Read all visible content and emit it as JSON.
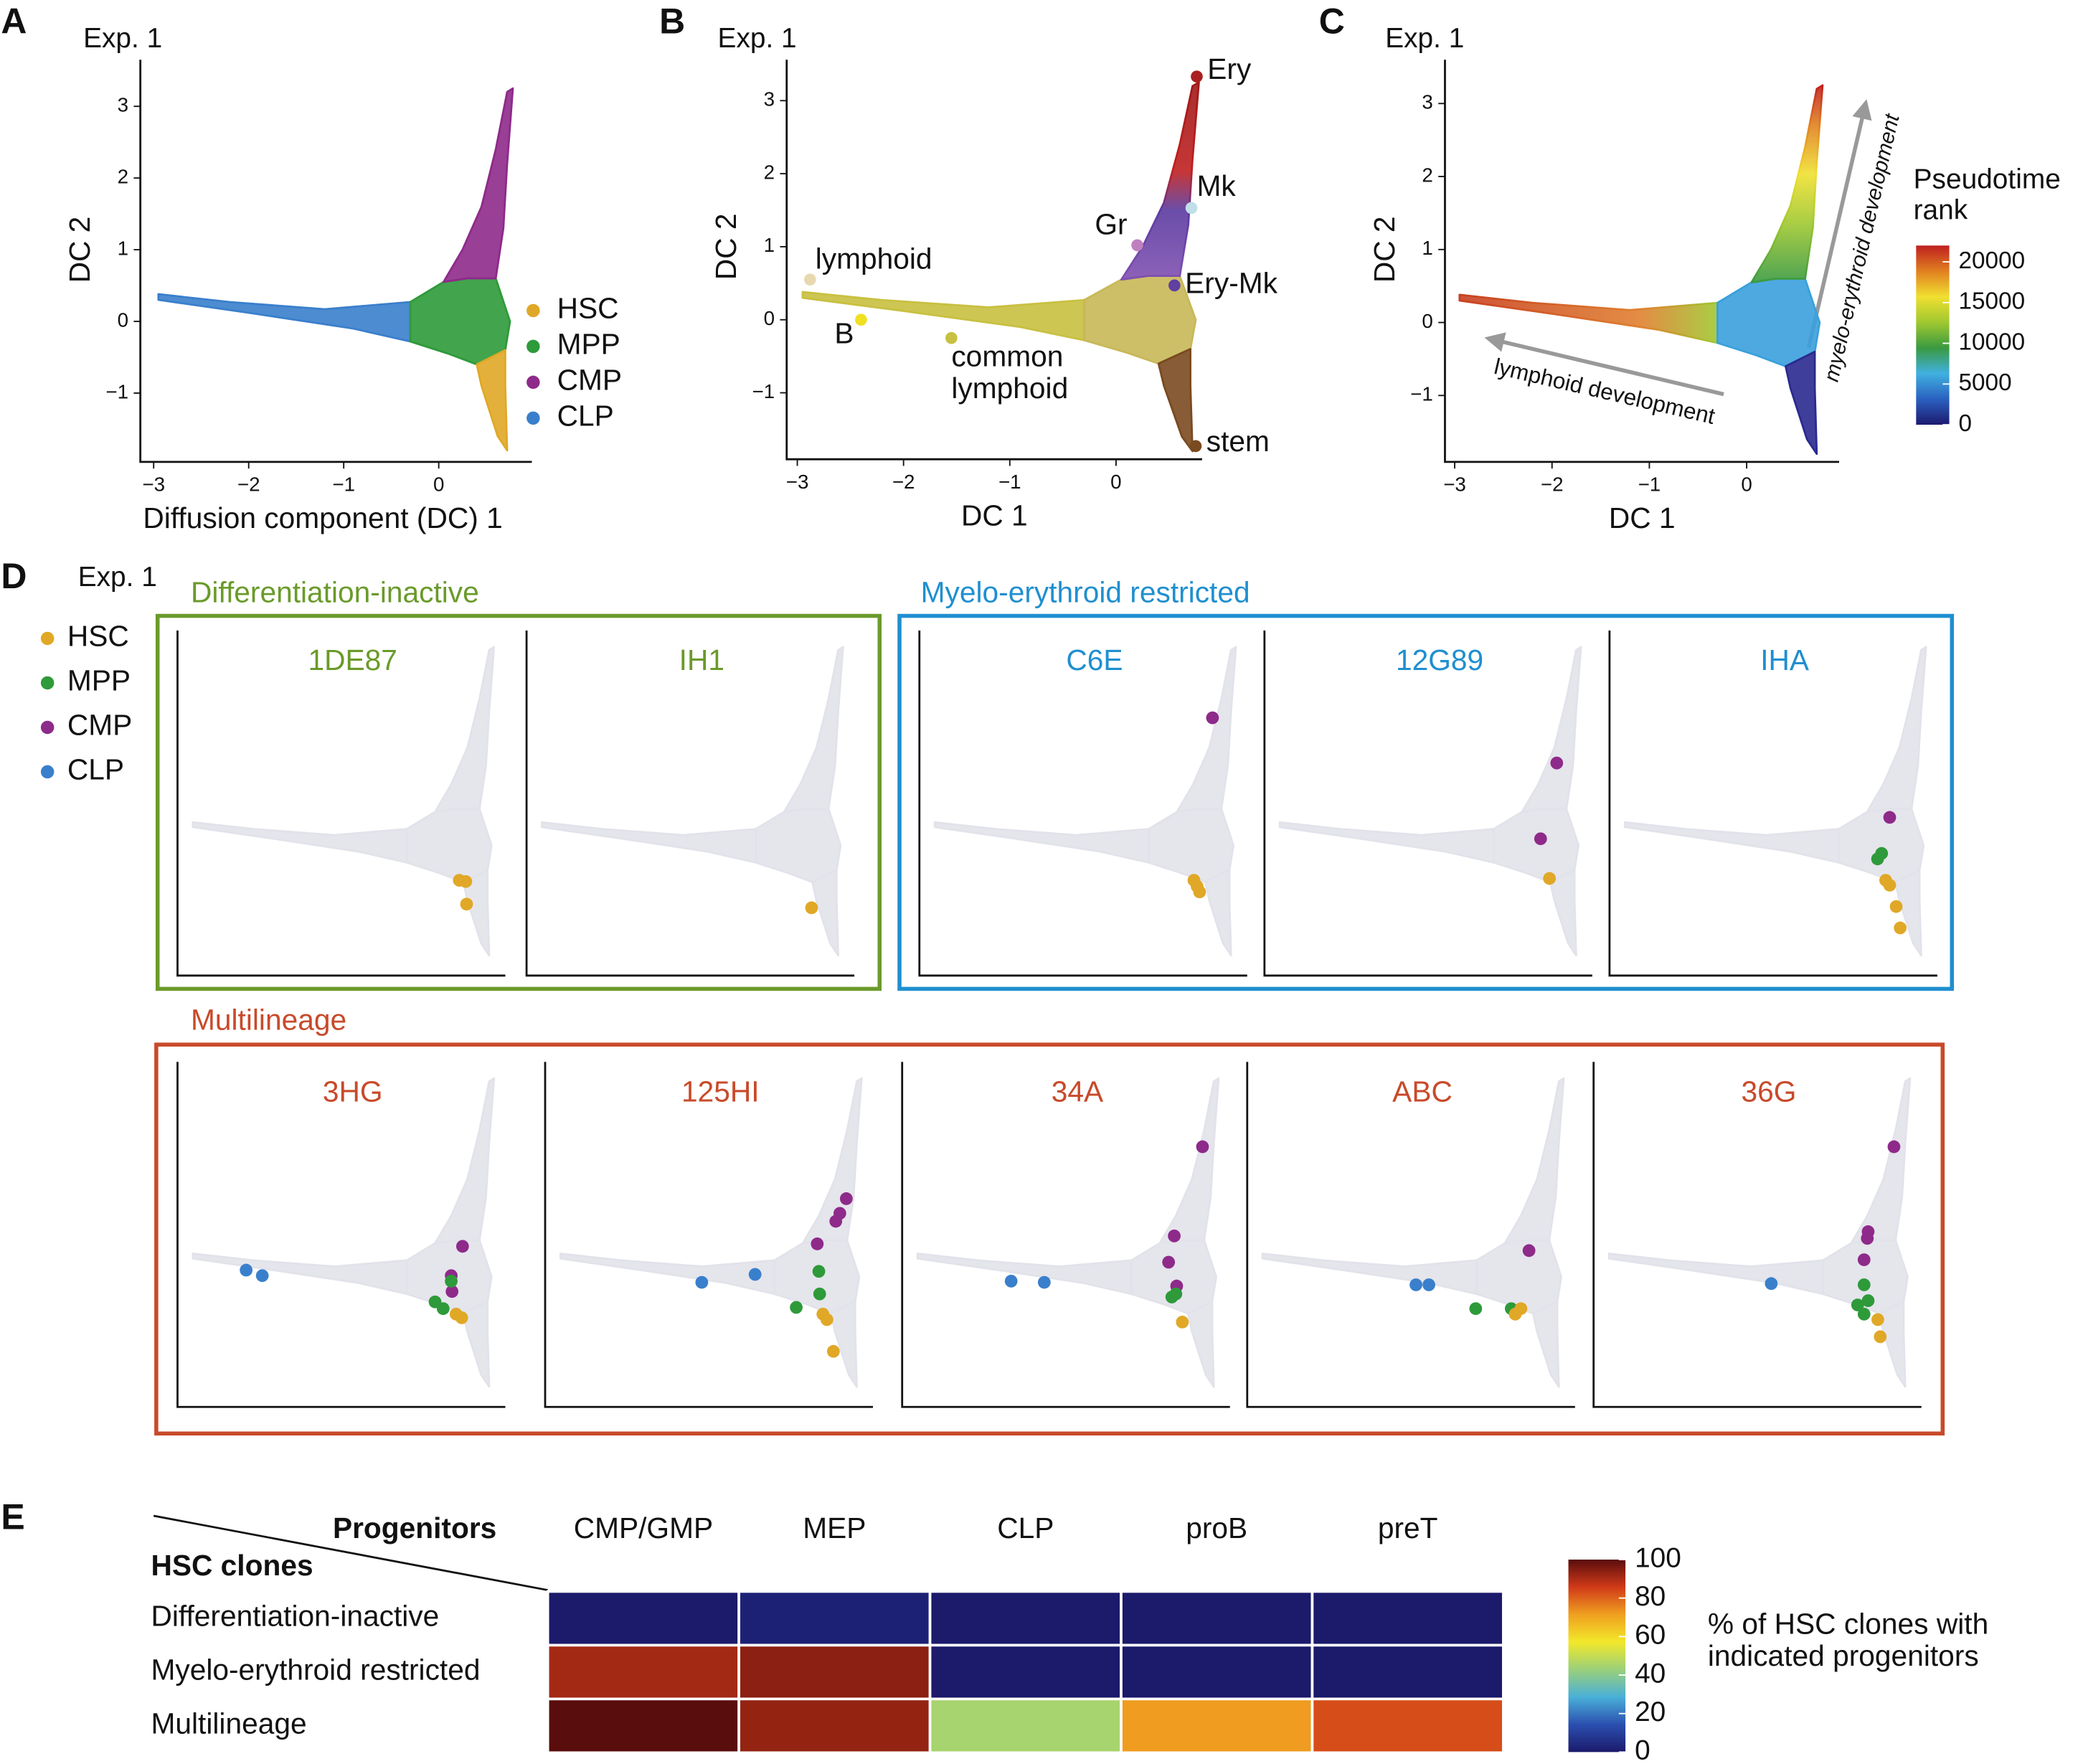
{
  "chart_data": [
    {
      "type": "scatter",
      "panel": "A",
      "subtitle": "Exp. 1",
      "x_label": "Diffusion component (DC) 1",
      "y_label": "DC 2",
      "xlim": [
        -3.14,
        0.98
      ],
      "ylim": [
        -1.96,
        3.65
      ],
      "xticks": [
        {
          "value": -3,
          "label": "−3"
        },
        {
          "value": -2,
          "label": "−2"
        },
        {
          "value": -1,
          "label": "−1"
        },
        0
      ],
      "yticks": [
        {
          "value": -1,
          "label": "−1"
        },
        0,
        1,
        2,
        3
      ],
      "legend": [
        {
          "name": "HSC",
          "color": "#e0a826"
        },
        {
          "name": "MPP",
          "color": "#2e9a3a"
        },
        {
          "name": "CMP",
          "color": "#8e2a8a"
        },
        {
          "name": "CLP",
          "color": "#3a7fcc"
        }
      ]
    },
    {
      "type": "scatter",
      "panel": "B",
      "subtitle": "Exp. 1",
      "x_label": "DC 1",
      "y_label": "DC 2",
      "xlim": [
        -3.1,
        0.81
      ],
      "ylim": [
        -1.91,
        3.56
      ],
      "xticks": [
        {
          "value": -3,
          "label": "−3"
        },
        {
          "value": -2,
          "label": "−2"
        },
        {
          "value": -1,
          "label": "−1"
        },
        0
      ],
      "yticks": [
        {
          "value": -1,
          "label": "−1"
        },
        0,
        1,
        2,
        3
      ],
      "annotations": [
        {
          "label": "lymphoid",
          "x": -2.88,
          "y": 0.55,
          "color": "#e8d8b0"
        },
        {
          "label": "B",
          "x": -2.4,
          "y": 0.0,
          "color": "#f0e020"
        },
        {
          "label": "common lymphoid",
          "x": -1.55,
          "y": -0.25,
          "color": "#c8c040"
        },
        {
          "label": "Gr",
          "x": 0.2,
          "y": 1.02,
          "color": "#c080c0"
        },
        {
          "label": "Mk",
          "x": 0.71,
          "y": 1.53,
          "color": "#c0dfe8"
        },
        {
          "label": "Ery",
          "x": 0.76,
          "y": 3.33,
          "color": "#aa2020"
        },
        {
          "label": "Ery-Mk",
          "x": 0.55,
          "y": 0.47,
          "color": "#6040a0"
        },
        {
          "label": "stem",
          "x": 0.75,
          "y": -1.73,
          "color": "#7a4a20"
        }
      ]
    },
    {
      "type": "scatter",
      "panel": "C",
      "subtitle": "Exp. 1",
      "x_label": "DC 1",
      "y_label": "DC 2",
      "xlim": [
        -3.1,
        0.95
      ],
      "ylim": [
        -1.91,
        3.6
      ],
      "xticks": [
        {
          "value": -3,
          "label": "−3"
        },
        {
          "value": -2,
          "label": "−2"
        },
        {
          "value": -1,
          "label": "−1"
        },
        0
      ],
      "yticks": [
        {
          "value": -1,
          "label": "−1"
        },
        0,
        1,
        2,
        3
      ],
      "annotations": [
        "lymphoid development",
        "myelo-erythroid development"
      ],
      "colorbar": {
        "title": "Pseudotime rank",
        "zlim": [
          0,
          22000
        ],
        "ticks": [
          0,
          5000,
          10000,
          15000,
          20000
        ],
        "colors": [
          "#1c1a6e",
          "#2a60c0",
          "#40b0e0",
          "#3a9a40",
          "#a0c830",
          "#f0e030",
          "#e08020",
          "#c02020"
        ]
      }
    },
    {
      "type": "small-multiples",
      "panel": "D",
      "subtitle": "Exp. 1",
      "xlim": [
        -3.14,
        0.92
      ],
      "ylim": [
        -2.13,
        3.52
      ],
      "legend": [
        {
          "name": "HSC",
          "color": "#e0a826"
        },
        {
          "name": "MPP",
          "color": "#2e9a3a"
        },
        {
          "name": "CMP",
          "color": "#8e2a8a"
        },
        {
          "name": "CLP",
          "color": "#3a7fcc"
        }
      ],
      "groups": [
        {
          "title": "Differentiation-inactive",
          "color": "#6a9a2a",
          "clones": [
            {
              "name": "1DE87",
              "series": [
                {
                  "color": "#e0a826",
                  "x": [
                    0.35,
                    0.43,
                    0.44
                  ],
                  "y": [
                    -0.57,
                    -0.59,
                    -0.96
                  ]
                }
              ]
            },
            {
              "name": "IH1",
              "series": [
                {
                  "color": "#e0a826",
                  "x": [
                    0.39
                  ],
                  "y": [
                    -1.02
                  ]
                }
              ]
            }
          ]
        },
        {
          "title": "Myelo-erythroid restricted",
          "color": "#1f8fd0",
          "clones": [
            {
              "name": "C6E",
              "series": [
                {
                  "color": "#8e2a8a",
                  "x": [
                    0.49
                  ],
                  "y": [
                    2.09
                  ]
                },
                {
                  "color": "#e0a826",
                  "x": [
                    0.26,
                    0.3,
                    0.33
                  ],
                  "y": [
                    -0.57,
                    -0.67,
                    -0.76
                  ]
                }
              ]
            },
            {
              "name": "12G89",
              "series": [
                {
                  "color": "#8e2a8a",
                  "x": [
                    0.48,
                    0.28
                  ],
                  "y": [
                    1.35,
                    0.11
                  ]
                },
                {
                  "color": "#e0a826",
                  "x": [
                    0.39
                  ],
                  "y": [
                    -0.54
                  ]
                }
              ]
            },
            {
              "name": "IHA",
              "series": [
                {
                  "color": "#8e2a8a",
                  "x": [
                    0.33
                  ],
                  "y": [
                    0.46
                  ]
                },
                {
                  "color": "#2e9a3a",
                  "x": [
                    0.23,
                    0.18
                  ],
                  "y": [
                    -0.13,
                    -0.22
                  ]
                },
                {
                  "color": "#e0a826",
                  "x": [
                    0.28,
                    0.33,
                    0.41,
                    0.46
                  ],
                  "y": [
                    -0.57,
                    -0.65,
                    -1.0,
                    -1.35
                  ]
                }
              ]
            }
          ]
        },
        {
          "title": "Multilineage",
          "color": "#c84a2a",
          "clones": [
            {
              "name": "3HG",
              "series": [
                {
                  "color": "#3a7fcc",
                  "x": [
                    -2.29,
                    -2.09
                  ],
                  "y": [
                    0.11,
                    0.02
                  ]
                },
                {
                  "color": "#8e2a8a",
                  "x": [
                    0.39,
                    0.25,
                    0.26
                  ],
                  "y": [
                    0.5,
                    0.02,
                    -0.24
                  ]
                },
                {
                  "color": "#2e9a3a",
                  "x": [
                    0.25,
                    0.05,
                    0.15
                  ],
                  "y": [
                    -0.07,
                    -0.41,
                    -0.52
                  ]
                },
                {
                  "color": "#e0a826",
                  "x": [
                    0.31,
                    0.38
                  ],
                  "y": [
                    -0.61,
                    -0.67
                  ]
                }
              ]
            },
            {
              "name": "125HI",
              "series": [
                {
                  "color": "#3a7fcc",
                  "x": [
                    -1.2,
                    -0.54
                  ],
                  "y": [
                    -0.09,
                    0.04
                  ]
                },
                {
                  "color": "#8e2a8a",
                  "x": [
                    0.59,
                    0.51,
                    0.46,
                    0.23
                  ],
                  "y": [
                    1.28,
                    1.04,
                    0.91,
                    0.54
                  ]
                },
                {
                  "color": "#2e9a3a",
                  "x": [
                    0.25,
                    0.26,
                    -0.03
                  ],
                  "y": [
                    0.09,
                    -0.28,
                    -0.5
                  ]
                },
                {
                  "color": "#e0a826",
                  "x": [
                    0.3,
                    0.35,
                    0.43
                  ],
                  "y": [
                    -0.61,
                    -0.7,
                    -1.22
                  ]
                }
              ]
            },
            {
              "name": "34A",
              "series": [
                {
                  "color": "#3a7fcc",
                  "x": [
                    -1.79,
                    -1.38
                  ],
                  "y": [
                    -0.07,
                    -0.09
                  ]
                },
                {
                  "color": "#8e2a8a",
                  "x": [
                    0.58,
                    0.23,
                    0.16,
                    0.26
                  ],
                  "y": [
                    2.13,
                    0.67,
                    0.24,
                    -0.15
                  ]
                },
                {
                  "color": "#2e9a3a",
                  "x": [
                    0.2,
                    0.25
                  ],
                  "y": [
                    -0.33,
                    -0.28
                  ]
                },
                {
                  "color": "#e0a826",
                  "x": [
                    0.33
                  ],
                  "y": [
                    -0.74
                  ]
                }
              ]
            },
            {
              "name": "ABC",
              "series": [
                {
                  "color": "#3a7fcc",
                  "x": [
                    -1.05,
                    -0.89
                  ],
                  "y": [
                    -0.13,
                    -0.13
                  ]
                },
                {
                  "color": "#8e2a8a",
                  "x": [
                    0.35
                  ],
                  "y": [
                    0.43
                  ]
                },
                {
                  "color": "#2e9a3a",
                  "x": [
                    -0.31,
                    0.13
                  ],
                  "y": [
                    -0.52,
                    -0.52
                  ]
                },
                {
                  "color": "#e0a826",
                  "x": [
                    0.25,
                    0.18
                  ],
                  "y": [
                    -0.52,
                    -0.61
                  ]
                }
              ]
            },
            {
              "name": "36G",
              "series": [
                {
                  "color": "#3a7fcc",
                  "x": [
                    -0.94
                  ],
                  "y": [
                    -0.11
                  ]
                },
                {
                  "color": "#8e2a8a",
                  "x": [
                    0.58,
                    0.26,
                    0.25,
                    0.21
                  ],
                  "y": [
                    2.13,
                    0.74,
                    0.63,
                    0.28
                  ]
                },
                {
                  "color": "#2e9a3a",
                  "x": [
                    0.21,
                    0.26,
                    0.13,
                    0.21
                  ],
                  "y": [
                    -0.13,
                    -0.39,
                    -0.46,
                    -0.61
                  ]
                },
                {
                  "color": "#e0a826",
                  "x": [
                    0.38,
                    0.41
                  ],
                  "y": [
                    -0.7,
                    -0.98
                  ]
                }
              ]
            }
          ]
        }
      ]
    },
    {
      "type": "heatmap",
      "panel": "E",
      "col_header": "Progenitors",
      "row_header": "HSC clones",
      "categories": [
        "CMP/GMP",
        "MEP",
        "CLP",
        "proB",
        "preT"
      ],
      "rows": [
        "Differentiation-inactive",
        "Myelo-erythroid restricted",
        "Multilineage"
      ],
      "values": [
        [
          0,
          2,
          0,
          0,
          0
        ],
        [
          91,
          94,
          0,
          0,
          0
        ],
        [
          100,
          93,
          45,
          72,
          83
        ]
      ],
      "colorbar": {
        "title": "% of HSC clones with indicated progenitors",
        "zlim": [
          0,
          100
        ],
        "ticks": [
          0,
          20,
          40,
          60,
          80,
          100
        ],
        "colors": [
          "#1b1a6b",
          "#2b4fb0",
          "#4ab0d8",
          "#9ad07a",
          "#f2e82a",
          "#f0a020",
          "#d03a18",
          "#5a0d0d"
        ]
      }
    }
  ]
}
